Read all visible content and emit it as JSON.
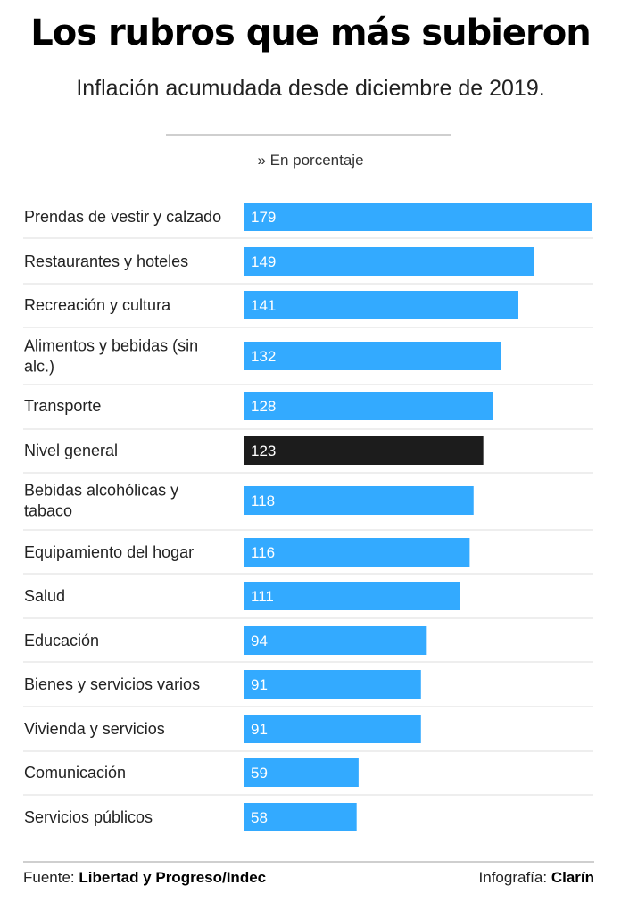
{
  "title": "Los rubros que más subieron",
  "subtitle": "Inflación acumudada desde diciembre de 2019.",
  "unit_note": "» En porcentaje",
  "footer": {
    "source_label": "Fuente:",
    "source_value": "Libertad y Progreso/Indec",
    "credit_label": "Infografía:",
    "credit_value": "Clarín"
  },
  "colors": {
    "bar": "#33aaff",
    "highlight_bar": "#1c1c1c",
    "row_divider": "#dddddd"
  },
  "chart_data": {
    "type": "bar",
    "orientation": "horizontal",
    "title": "Los rubros que más subieron",
    "subtitle": "Inflación acumudada desde diciembre de 2019.",
    "categories": [
      "Prendas de vestir y calzado",
      "Restaurantes y hoteles",
      "Recreación y cultura",
      "Alimentos y bebidas (sin alc.)",
      "Transporte",
      "Nivel general",
      "Bebidas alcohólicas y tabaco",
      "Equipamiento del hogar",
      "Salud",
      "Educación",
      "Bienes y servicios varios",
      "Vivienda y servicios",
      "Comunicación",
      "Servicios públicos"
    ],
    "values": [
      179,
      149,
      141,
      132,
      128,
      123,
      118,
      116,
      111,
      94,
      91,
      91,
      59,
      58
    ],
    "highlight_category": "Nivel general",
    "xlim": [
      0,
      179
    ],
    "grid": false,
    "data_labels": "inside-left"
  }
}
